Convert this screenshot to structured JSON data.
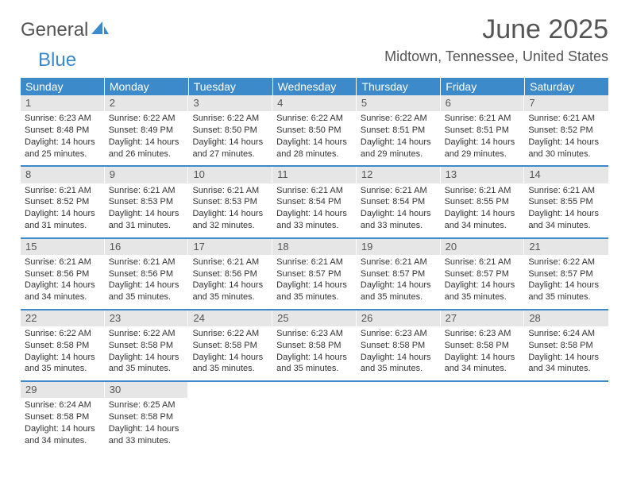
{
  "brand": {
    "part1": "General",
    "part2": "Blue"
  },
  "title": "June 2025",
  "location": "Midtown, Tennessee, United States",
  "dow": [
    "Sunday",
    "Monday",
    "Tuesday",
    "Wednesday",
    "Thursday",
    "Friday",
    "Saturday"
  ],
  "colors": {
    "header_bg": "#3c8ac9",
    "header_text": "#ffffff",
    "daynum_bg": "#e6e6e6",
    "rule": "#3c8ac9",
    "text": "#333333",
    "title_text": "#555555"
  },
  "days": [
    {
      "n": "1",
      "sr": "Sunrise: 6:23 AM",
      "ss": "Sunset: 8:48 PM",
      "dl1": "Daylight: 14 hours",
      "dl2": "and 25 minutes."
    },
    {
      "n": "2",
      "sr": "Sunrise: 6:22 AM",
      "ss": "Sunset: 8:49 PM",
      "dl1": "Daylight: 14 hours",
      "dl2": "and 26 minutes."
    },
    {
      "n": "3",
      "sr": "Sunrise: 6:22 AM",
      "ss": "Sunset: 8:50 PM",
      "dl1": "Daylight: 14 hours",
      "dl2": "and 27 minutes."
    },
    {
      "n": "4",
      "sr": "Sunrise: 6:22 AM",
      "ss": "Sunset: 8:50 PM",
      "dl1": "Daylight: 14 hours",
      "dl2": "and 28 minutes."
    },
    {
      "n": "5",
      "sr": "Sunrise: 6:22 AM",
      "ss": "Sunset: 8:51 PM",
      "dl1": "Daylight: 14 hours",
      "dl2": "and 29 minutes."
    },
    {
      "n": "6",
      "sr": "Sunrise: 6:21 AM",
      "ss": "Sunset: 8:51 PM",
      "dl1": "Daylight: 14 hours",
      "dl2": "and 29 minutes."
    },
    {
      "n": "7",
      "sr": "Sunrise: 6:21 AM",
      "ss": "Sunset: 8:52 PM",
      "dl1": "Daylight: 14 hours",
      "dl2": "and 30 minutes."
    },
    {
      "n": "8",
      "sr": "Sunrise: 6:21 AM",
      "ss": "Sunset: 8:52 PM",
      "dl1": "Daylight: 14 hours",
      "dl2": "and 31 minutes."
    },
    {
      "n": "9",
      "sr": "Sunrise: 6:21 AM",
      "ss": "Sunset: 8:53 PM",
      "dl1": "Daylight: 14 hours",
      "dl2": "and 31 minutes."
    },
    {
      "n": "10",
      "sr": "Sunrise: 6:21 AM",
      "ss": "Sunset: 8:53 PM",
      "dl1": "Daylight: 14 hours",
      "dl2": "and 32 minutes."
    },
    {
      "n": "11",
      "sr": "Sunrise: 6:21 AM",
      "ss": "Sunset: 8:54 PM",
      "dl1": "Daylight: 14 hours",
      "dl2": "and 33 minutes."
    },
    {
      "n": "12",
      "sr": "Sunrise: 6:21 AM",
      "ss": "Sunset: 8:54 PM",
      "dl1": "Daylight: 14 hours",
      "dl2": "and 33 minutes."
    },
    {
      "n": "13",
      "sr": "Sunrise: 6:21 AM",
      "ss": "Sunset: 8:55 PM",
      "dl1": "Daylight: 14 hours",
      "dl2": "and 34 minutes."
    },
    {
      "n": "14",
      "sr": "Sunrise: 6:21 AM",
      "ss": "Sunset: 8:55 PM",
      "dl1": "Daylight: 14 hours",
      "dl2": "and 34 minutes."
    },
    {
      "n": "15",
      "sr": "Sunrise: 6:21 AM",
      "ss": "Sunset: 8:56 PM",
      "dl1": "Daylight: 14 hours",
      "dl2": "and 34 minutes."
    },
    {
      "n": "16",
      "sr": "Sunrise: 6:21 AM",
      "ss": "Sunset: 8:56 PM",
      "dl1": "Daylight: 14 hours",
      "dl2": "and 35 minutes."
    },
    {
      "n": "17",
      "sr": "Sunrise: 6:21 AM",
      "ss": "Sunset: 8:56 PM",
      "dl1": "Daylight: 14 hours",
      "dl2": "and 35 minutes."
    },
    {
      "n": "18",
      "sr": "Sunrise: 6:21 AM",
      "ss": "Sunset: 8:57 PM",
      "dl1": "Daylight: 14 hours",
      "dl2": "and 35 minutes."
    },
    {
      "n": "19",
      "sr": "Sunrise: 6:21 AM",
      "ss": "Sunset: 8:57 PM",
      "dl1": "Daylight: 14 hours",
      "dl2": "and 35 minutes."
    },
    {
      "n": "20",
      "sr": "Sunrise: 6:21 AM",
      "ss": "Sunset: 8:57 PM",
      "dl1": "Daylight: 14 hours",
      "dl2": "and 35 minutes."
    },
    {
      "n": "21",
      "sr": "Sunrise: 6:22 AM",
      "ss": "Sunset: 8:57 PM",
      "dl1": "Daylight: 14 hours",
      "dl2": "and 35 minutes."
    },
    {
      "n": "22",
      "sr": "Sunrise: 6:22 AM",
      "ss": "Sunset: 8:58 PM",
      "dl1": "Daylight: 14 hours",
      "dl2": "and 35 minutes."
    },
    {
      "n": "23",
      "sr": "Sunrise: 6:22 AM",
      "ss": "Sunset: 8:58 PM",
      "dl1": "Daylight: 14 hours",
      "dl2": "and 35 minutes."
    },
    {
      "n": "24",
      "sr": "Sunrise: 6:22 AM",
      "ss": "Sunset: 8:58 PM",
      "dl1": "Daylight: 14 hours",
      "dl2": "and 35 minutes."
    },
    {
      "n": "25",
      "sr": "Sunrise: 6:23 AM",
      "ss": "Sunset: 8:58 PM",
      "dl1": "Daylight: 14 hours",
      "dl2": "and 35 minutes."
    },
    {
      "n": "26",
      "sr": "Sunrise: 6:23 AM",
      "ss": "Sunset: 8:58 PM",
      "dl1": "Daylight: 14 hours",
      "dl2": "and 35 minutes."
    },
    {
      "n": "27",
      "sr": "Sunrise: 6:23 AM",
      "ss": "Sunset: 8:58 PM",
      "dl1": "Daylight: 14 hours",
      "dl2": "and 34 minutes."
    },
    {
      "n": "28",
      "sr": "Sunrise: 6:24 AM",
      "ss": "Sunset: 8:58 PM",
      "dl1": "Daylight: 14 hours",
      "dl2": "and 34 minutes."
    },
    {
      "n": "29",
      "sr": "Sunrise: 6:24 AM",
      "ss": "Sunset: 8:58 PM",
      "dl1": "Daylight: 14 hours",
      "dl2": "and 34 minutes."
    },
    {
      "n": "30",
      "sr": "Sunrise: 6:25 AM",
      "ss": "Sunset: 8:58 PM",
      "dl1": "Daylight: 14 hours",
      "dl2": "and 33 minutes."
    }
  ]
}
